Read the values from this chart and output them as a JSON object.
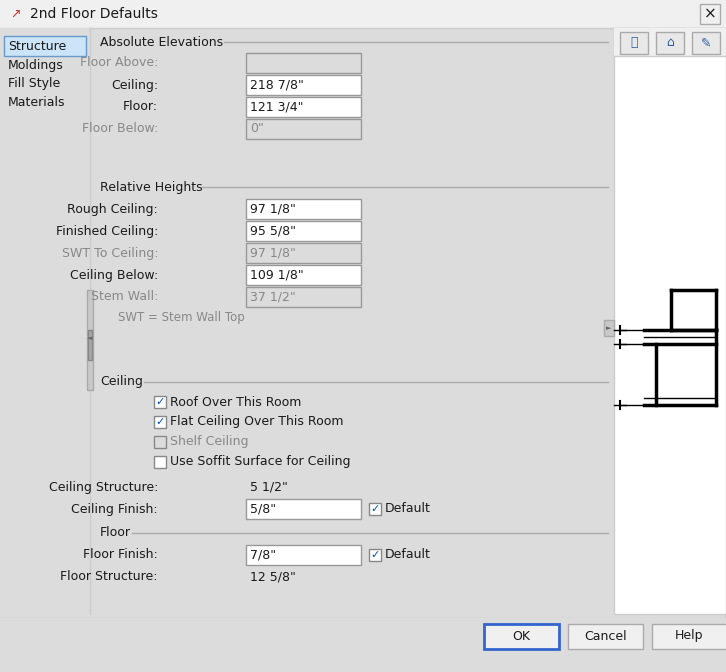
{
  "title": "2nd Floor Defaults",
  "bg_color": "#dcdcdc",
  "white": "#ffffff",
  "tab_items": [
    "Structure",
    "Moldings",
    "Fill Style",
    "Materials"
  ],
  "section1_title": "Absolute Elevations",
  "abs_elev_fields": [
    {
      "label": "Floor Above:",
      "value": "",
      "enabled": false
    },
    {
      "label": "Ceiling:",
      "value": "218 7/8\"",
      "enabled": true
    },
    {
      "label": "Floor:",
      "value": "121 3/4\"",
      "enabled": true
    },
    {
      "label": "Floor Below:",
      "value": "0\"",
      "enabled": false
    }
  ],
  "section2_title": "Relative Heights",
  "rel_height_fields": [
    {
      "label": "Rough Ceiling:",
      "value": "97 1/8\"",
      "enabled": true
    },
    {
      "label": "Finished Ceiling:",
      "value": "95 5/8\"",
      "enabled": true
    },
    {
      "label": "SWT To Ceiling:",
      "value": "97 1/8\"",
      "enabled": false
    },
    {
      "label": "Ceiling Below:",
      "value": "109 1/8\"",
      "enabled": true
    },
    {
      "label": "Stem Wall:",
      "value": "37 1/2\"",
      "enabled": false
    }
  ],
  "swt_note": "SWT = Stem Wall Top",
  "section3_title": "Ceiling",
  "checkboxes": [
    {
      "label": "Roof Over This Room",
      "checked": true,
      "enabled": true
    },
    {
      "label": "Flat Ceiling Over This Room",
      "checked": true,
      "enabled": true
    },
    {
      "label": "Shelf Ceiling",
      "checked": false,
      "enabled": false
    },
    {
      "label": "Use Soffit Surface for Ceiling",
      "checked": false,
      "enabled": true
    }
  ],
  "ceiling_structure_label": "Ceiling Structure:",
  "ceiling_structure_value": "5 1/2\"",
  "ceiling_finish_label": "Ceiling Finish:",
  "ceiling_finish_value": "5/8\"",
  "ceiling_finish_default": true,
  "section4_title": "Floor",
  "floor_finish_label": "Floor Finish:",
  "floor_finish_value": "7/8\"",
  "floor_finish_default": true,
  "floor_structure_label": "Floor Structure:",
  "floor_structure_value": "12 5/8\"",
  "btn_ok": "OK",
  "btn_cancel": "Cancel",
  "btn_help": "Help",
  "dark_text": "#1a1a1a",
  "gray_text": "#888888",
  "blue_check": "#0050c0",
  "tab_selected_color": "#add8e6"
}
